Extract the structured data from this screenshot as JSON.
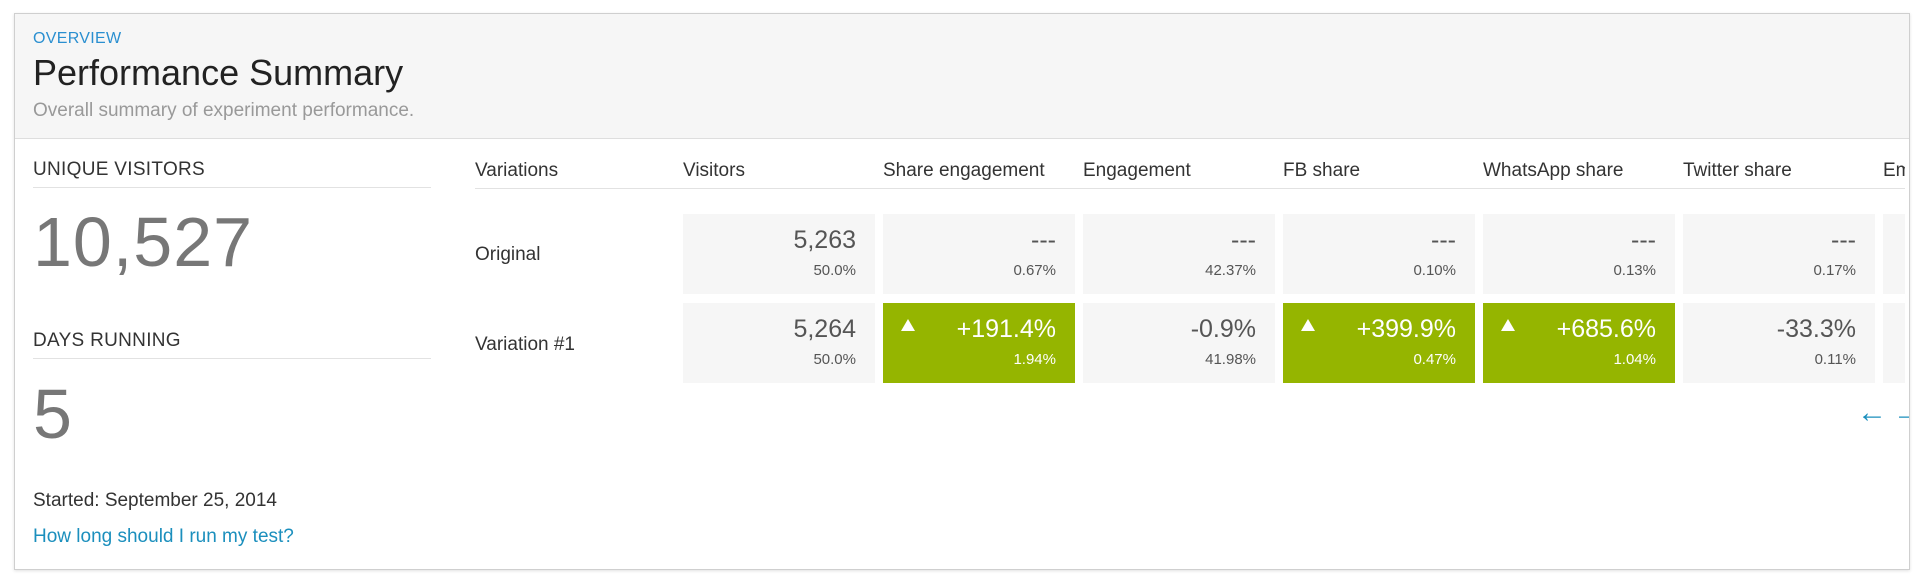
{
  "header": {
    "eyebrow": "OVERVIEW",
    "title": "Performance Summary",
    "subtitle": "Overall summary of experiment performance."
  },
  "stats": {
    "unique_visitors_label": "UNIQUE VISITORS",
    "unique_visitors_value": "10,527",
    "days_running_label": "DAYS RUNNING",
    "days_running_value": "5",
    "started": "Started: September 25, 2014",
    "help_link": "How long should I run my test?"
  },
  "table": {
    "columns": [
      "Variations",
      "Visitors",
      "Share engagement",
      "Engagement",
      "FB share",
      "WhatsApp share",
      "Twitter share",
      "Em"
    ],
    "rows": [
      {
        "label": "Original",
        "cells": [
          {
            "main": "5,263",
            "sub": "50.0%",
            "winner": false
          },
          {
            "main": "---",
            "sub": "0.67%",
            "winner": false
          },
          {
            "main": "---",
            "sub": "42.37%",
            "winner": false
          },
          {
            "main": "---",
            "sub": "0.10%",
            "winner": false
          },
          {
            "main": "---",
            "sub": "0.13%",
            "winner": false
          },
          {
            "main": "---",
            "sub": "0.17%",
            "winner": false
          }
        ]
      },
      {
        "label": "Variation #1",
        "cells": [
          {
            "main": "5,264",
            "sub": "50.0%",
            "winner": false
          },
          {
            "main": "+191.4%",
            "sub": "1.94%",
            "winner": true
          },
          {
            "main": "-0.9%",
            "sub": "41.98%",
            "winner": false
          },
          {
            "main": "+399.9%",
            "sub": "0.47%",
            "winner": true
          },
          {
            "main": "+685.6%",
            "sub": "1.04%",
            "winner": true
          },
          {
            "main": "-33.3%",
            "sub": "0.11%",
            "winner": false
          }
        ]
      }
    ]
  },
  "nav": {
    "prev_icon": "←",
    "next_icon": "→"
  },
  "colors": {
    "accent": "#2a8fd0",
    "link": "#1b8fbd",
    "winner": "#95b500",
    "cell_bg": "#f6f6f6"
  }
}
